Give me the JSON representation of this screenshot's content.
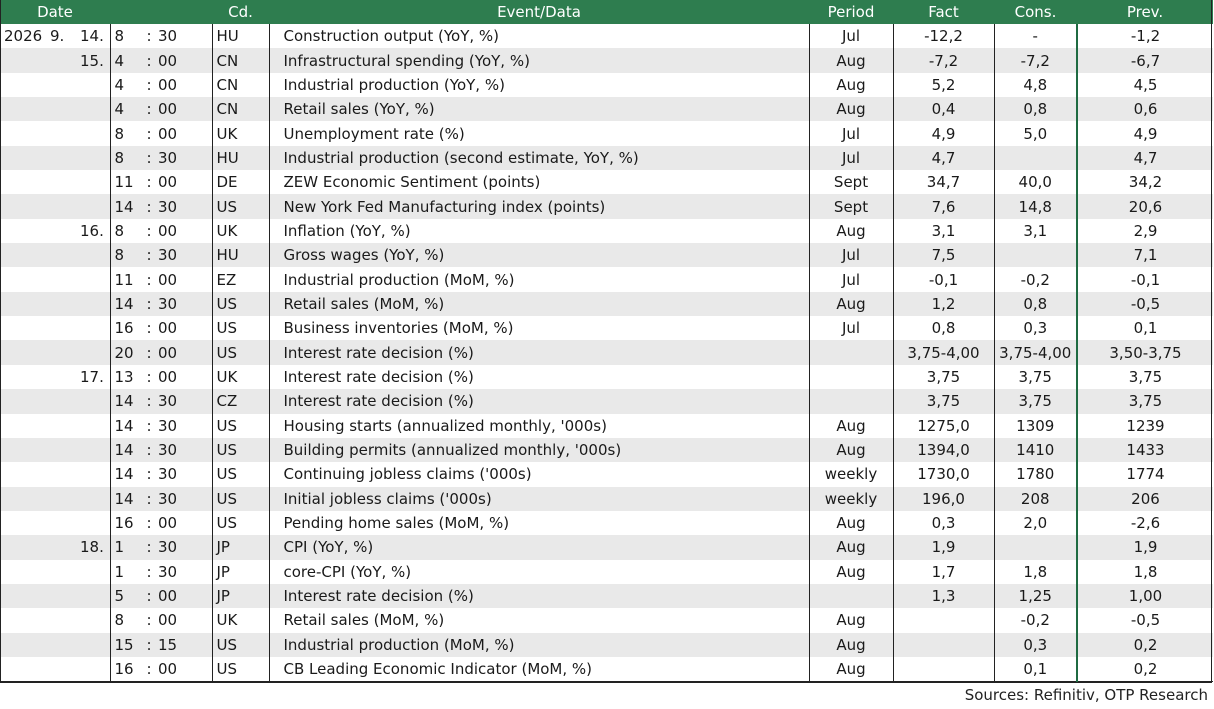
{
  "header": {
    "date": "Date",
    "cd": "Cd.",
    "event": "Event/Data",
    "period": "Period",
    "fact": "Fact",
    "cons": "Cons.",
    "prev": "Prev."
  },
  "rows": [
    {
      "year": "2026",
      "month": "9.",
      "day": "14.",
      "hh": "8",
      "mm": "30",
      "cd": "HU",
      "event": "Construction output (YoY, %)",
      "period": "Jul",
      "fact": "-12,2",
      "cons": "-",
      "prev": "-1,2"
    },
    {
      "year": "",
      "month": "",
      "day": "15.",
      "hh": "4",
      "mm": "00",
      "cd": "CN",
      "event": "Infrastructural spending (YoY, %)",
      "period": "Aug",
      "fact": "-7,2",
      "cons": "-7,2",
      "prev": "-6,7"
    },
    {
      "year": "",
      "month": "",
      "day": "",
      "hh": "4",
      "mm": "00",
      "cd": "CN",
      "event": "Industrial production (YoY, %)",
      "period": "Aug",
      "fact": "5,2",
      "cons": "4,8",
      "prev": "4,5"
    },
    {
      "year": "",
      "month": "",
      "day": "",
      "hh": "4",
      "mm": "00",
      "cd": "CN",
      "event": "Retail sales (YoY, %)",
      "period": "Aug",
      "fact": "0,4",
      "cons": "0,8",
      "prev": "0,6"
    },
    {
      "year": "",
      "month": "",
      "day": "",
      "hh": "8",
      "mm": "00",
      "cd": "UK",
      "event": "Unemployment rate (%)",
      "period": "Jul",
      "fact": "4,9",
      "cons": "5,0",
      "prev": "4,9"
    },
    {
      "year": "",
      "month": "",
      "day": "",
      "hh": "8",
      "mm": "30",
      "cd": "HU",
      "event": "Industrial production (second estimate, YoY, %)",
      "period": "Jul",
      "fact": "4,7",
      "cons": "",
      "prev": "4,7"
    },
    {
      "year": "",
      "month": "",
      "day": "",
      "hh": "11",
      "mm": "00",
      "cd": "DE",
      "event": "ZEW Economic Sentiment (points)",
      "period": "Sept",
      "fact": "34,7",
      "cons": "40,0",
      "prev": "34,2"
    },
    {
      "year": "",
      "month": "",
      "day": "",
      "hh": "14",
      "mm": "30",
      "cd": "US",
      "event": "New York Fed Manufacturing index (points)",
      "period": "Sept",
      "fact": "7,6",
      "cons": "14,8",
      "prev": "20,6"
    },
    {
      "year": "",
      "month": "",
      "day": "16.",
      "hh": "8",
      "mm": "00",
      "cd": "UK",
      "event": "Inflation (YoY, %)",
      "period": "Aug",
      "fact": "3,1",
      "cons": "3,1",
      "prev": "2,9"
    },
    {
      "year": "",
      "month": "",
      "day": "",
      "hh": "8",
      "mm": "30",
      "cd": "HU",
      "event": "Gross wages (YoY, %)",
      "period": "Jul",
      "fact": "7,5",
      "cons": "",
      "prev": "7,1"
    },
    {
      "year": "",
      "month": "",
      "day": "",
      "hh": "11",
      "mm": "00",
      "cd": "EZ",
      "event": "Industrial production (MoM, %)",
      "period": "Jul",
      "fact": "-0,1",
      "cons": "-0,2",
      "prev": "-0,1"
    },
    {
      "year": "",
      "month": "",
      "day": "",
      "hh": "14",
      "mm": "30",
      "cd": "US",
      "event": "Retail sales (MoM, %)",
      "period": "Aug",
      "fact": "1,2",
      "cons": "0,8",
      "prev": "-0,5"
    },
    {
      "year": "",
      "month": "",
      "day": "",
      "hh": "16",
      "mm": "00",
      "cd": "US",
      "event": "Business inventories (MoM, %)",
      "period": "Jul",
      "fact": "0,8",
      "cons": "0,3",
      "prev": "0,1"
    },
    {
      "year": "",
      "month": "",
      "day": "",
      "hh": "20",
      "mm": "00",
      "cd": "US",
      "event": "Interest rate decision (%)",
      "period": "",
      "fact": "3,75-4,00",
      "cons": "3,75-4,00",
      "prev": "3,50-3,75"
    },
    {
      "year": "",
      "month": "",
      "day": "17.",
      "hh": "13",
      "mm": "00",
      "cd": "UK",
      "event": "Interest rate decision (%)",
      "period": "",
      "fact": "3,75",
      "cons": "3,75",
      "prev": "3,75"
    },
    {
      "year": "",
      "month": "",
      "day": "",
      "hh": "14",
      "mm": "30",
      "cd": "CZ",
      "event": "Interest rate decision (%)",
      "period": "",
      "fact": "3,75",
      "cons": "3,75",
      "prev": "3,75"
    },
    {
      "year": "",
      "month": "",
      "day": "",
      "hh": "14",
      "mm": "30",
      "cd": "US",
      "event": "Housing starts (annualized monthly, '000s)",
      "period": "Aug",
      "fact": "1275,0",
      "cons": "1309",
      "prev": "1239"
    },
    {
      "year": "",
      "month": "",
      "day": "",
      "hh": "14",
      "mm": "30",
      "cd": "US",
      "event": "Building permits (annualized monthly, '000s)",
      "period": "Aug",
      "fact": "1394,0",
      "cons": "1410",
      "prev": "1433"
    },
    {
      "year": "",
      "month": "",
      "day": "",
      "hh": "14",
      "mm": "30",
      "cd": "US",
      "event": "Continuing jobless claims ('000s)",
      "period": "weekly",
      "fact": "1730,0",
      "cons": "1780",
      "prev": "1774"
    },
    {
      "year": "",
      "month": "",
      "day": "",
      "hh": "14",
      "mm": "30",
      "cd": "US",
      "event": "Initial jobless claims ('000s)",
      "period": "weekly",
      "fact": "196,0",
      "cons": "208",
      "prev": "206"
    },
    {
      "year": "",
      "month": "",
      "day": "",
      "hh": "16",
      "mm": "00",
      "cd": "US",
      "event": "Pending home sales (MoM, %)",
      "period": "Aug",
      "fact": "0,3",
      "cons": "2,0",
      "prev": "-2,6"
    },
    {
      "year": "",
      "month": "",
      "day": "18.",
      "hh": "1",
      "mm": "30",
      "cd": "JP",
      "event": "CPI (YoY, %)",
      "period": "Aug",
      "fact": "1,9",
      "cons": "",
      "prev": "1,9"
    },
    {
      "year": "",
      "month": "",
      "day": "",
      "hh": "1",
      "mm": "30",
      "cd": "JP",
      "event": "core-CPI (YoY, %)",
      "period": "Aug",
      "fact": "1,7",
      "cons": "1,8",
      "prev": "1,8"
    },
    {
      "year": "",
      "month": "",
      "day": "",
      "hh": "5",
      "mm": "00",
      "cd": "JP",
      "event": "Interest rate decision (%)",
      "period": "",
      "fact": "1,3",
      "cons": "1,25",
      "prev": "1,00"
    },
    {
      "year": "",
      "month": "",
      "day": "",
      "hh": "8",
      "mm": "00",
      "cd": "UK",
      "event": "Retail sales (MoM, %)",
      "period": "Aug",
      "fact": "",
      "cons": "-0,2",
      "prev": "-0,5"
    },
    {
      "year": "",
      "month": "",
      "day": "",
      "hh": "15",
      "mm": "15",
      "cd": "US",
      "event": "Industrial production (MoM, %)",
      "period": "Aug",
      "fact": "",
      "cons": "0,3",
      "prev": "0,2"
    },
    {
      "year": "",
      "month": "",
      "day": "",
      "hh": "16",
      "mm": "00",
      "cd": "US",
      "event": "CB Leading Economic Indicator (MoM, %)",
      "period": "Aug",
      "fact": "",
      "cons": "0,1",
      "prev": "0,2"
    }
  ],
  "footer": {
    "source": "Sources: Refinitiv, OTP Research"
  },
  "colors": {
    "header_bg": "#2e7d4f",
    "header_text": "#ffffff",
    "stripe": "#e9e9e9"
  }
}
